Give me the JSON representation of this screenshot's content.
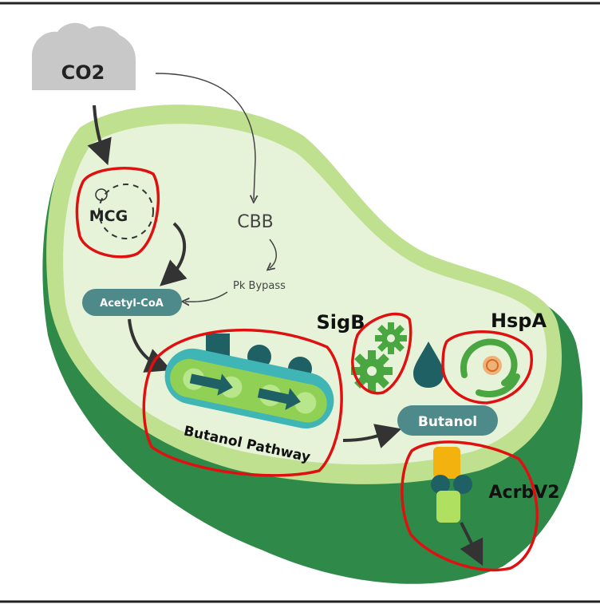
{
  "diagram": {
    "input": "CO2",
    "labels": {
      "mcg": "MCG",
      "cbb": "CBB",
      "pk_bypass": "Pk Bypass",
      "acetyl_coa": "Acetyl-CoA",
      "pathway": "Butanol Pathway",
      "sigb": "SigB",
      "hspa": "HspA",
      "butanol": "Butanol",
      "acrbv2": "AcrbV2"
    },
    "colors": {
      "cell_outer": "#2f8a4a",
      "cell_mid": "#bfe08e",
      "cell_inner": "#e6f3d9",
      "teal": "#3d7f84",
      "belt": "#3fb5b5",
      "belt_green": "#8fd055",
      "gear": "#4aa640",
      "circle_mark": "#e01010"
    }
  }
}
